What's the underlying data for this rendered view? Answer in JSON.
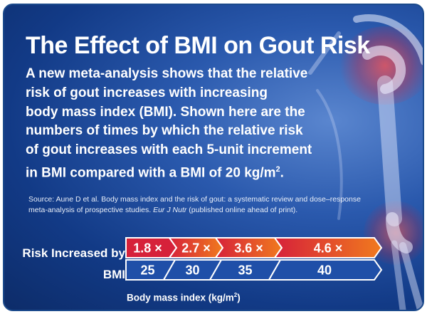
{
  "title": "The Effect of BMI on Gout Risk",
  "body_lines": [
    "A new meta-analysis shows that the relative",
    "risk of gout increases with increasing",
    "body mass index (BMI). Shown here are the",
    "numbers of times by which the relative risk",
    "of gout increases with each 5-unit increment",
    "in BMI compared with a BMI of 20 kg/m"
  ],
  "body_superscript": "2",
  "body_end": ".",
  "source_prefix": "Source: Aune D et al. Body mass index and the risk of gout: a systematic review and dose–response meta-analysis of prospective studies. ",
  "source_journal": "Eur J Nutr",
  "source_suffix": " (published online ahead of print).",
  "risk_row_label": "Risk Increased by",
  "bmi_row_label": "BMI",
  "axis_label": "Body mass index (kg/m",
  "axis_label_superscript": "2",
  "axis_label_end": ")",
  "risk_values": [
    "1.8 ×",
    "2.7 ×",
    "3.6 ×",
    "4.6 ×"
  ],
  "bmi_values": [
    "25",
    "30",
    "35",
    "40"
  ],
  "colors": {
    "risk_first": "#d6213a",
    "risk_gradient_end": "#f07a1e",
    "bmi_cell": "#1f4fa8",
    "cell_border": "#ffffff",
    "text": "#ffffff"
  }
}
